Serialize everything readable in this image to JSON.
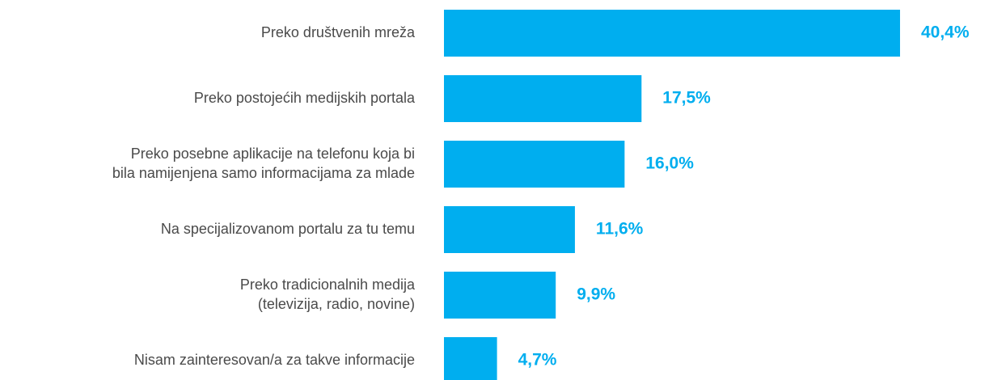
{
  "chart_data": {
    "type": "barh",
    "categories": [
      "Preko društvenih mreža",
      "Preko postojećih medijskih portala",
      "Preko posebne aplikacije na telefonu koja bi\nbila namijenjena samo informacijama za mlade",
      "Na specijalizovanom portalu za tu temu",
      "Preko tradicionalnih medija\n(televizija, radio, novine)",
      "Nisam zainteresovan/a za takve informacije"
    ],
    "values": [
      40.4,
      17.5,
      16.0,
      11.6,
      9.9,
      4.7
    ],
    "value_labels": [
      "40,4%",
      "17,5%",
      "16,0%",
      "11,6%",
      "9,9%",
      "4,7%"
    ],
    "color": "#00aeef"
  }
}
